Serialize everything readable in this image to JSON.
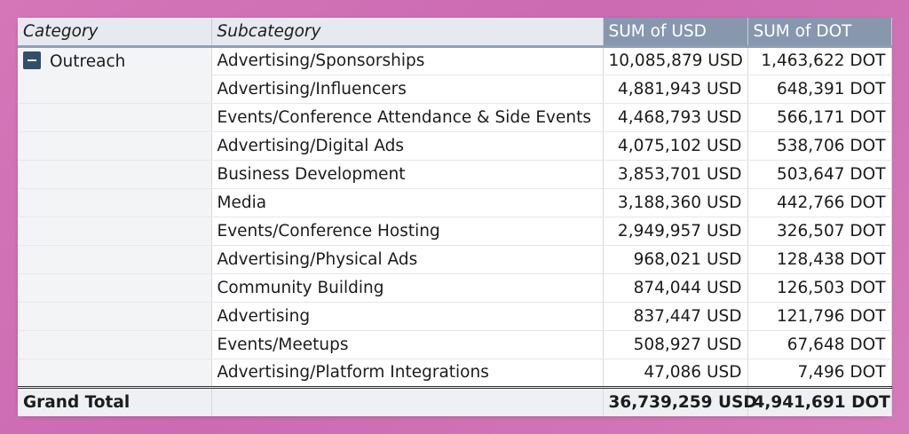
{
  "pivot": {
    "headers": {
      "category": "Category",
      "subcategory": "Subcategory",
      "usd": "SUM of USD",
      "dot": "SUM of DOT"
    },
    "category_name": "Outreach",
    "rows": [
      {
        "sub": "Advertising/Sponsorships",
        "usd": "10,085,879 USD",
        "dot": "1,463,622 DOT"
      },
      {
        "sub": "Advertising/Influencers",
        "usd": "4,881,943 USD",
        "dot": "648,391 DOT"
      },
      {
        "sub": "Events/Conference Attendance & Side Events",
        "usd": "4,468,793 USD",
        "dot": "566,171 DOT"
      },
      {
        "sub": "Advertising/Digital Ads",
        "usd": "4,075,102 USD",
        "dot": "538,706 DOT"
      },
      {
        "sub": "Business Development",
        "usd": "3,853,701 USD",
        "dot": "503,647 DOT"
      },
      {
        "sub": "Media",
        "usd": "3,188,360 USD",
        "dot": "442,766 DOT"
      },
      {
        "sub": "Events/Conference Hosting",
        "usd": "2,949,957 USD",
        "dot": "326,507 DOT"
      },
      {
        "sub": "Advertising/Physical Ads",
        "usd": "968,021 USD",
        "dot": "128,438 DOT"
      },
      {
        "sub": "Community Building",
        "usd": "874,044 USD",
        "dot": "126,503 DOT"
      },
      {
        "sub": "Advertising",
        "usd": "837,447 USD",
        "dot": "121,796 DOT"
      },
      {
        "sub": "Events/Meetups",
        "usd": "508,927 USD",
        "dot": "67,648 DOT"
      },
      {
        "sub": "Advertising/Platform Integrations",
        "usd": "47,086 USD",
        "dot": "7,496 DOT"
      }
    ],
    "total": {
      "label": "Grand Total",
      "usd": "36,739,259 USD",
      "dot": "4,941,691 DOT"
    }
  },
  "colors": {
    "background": "#cf6fb4",
    "header_measure": "#8797ae",
    "header_dim": "#e6e9ee",
    "toggle": "#2f4f6b"
  },
  "icons": {
    "collapse": "collapse-minus-icon"
  }
}
